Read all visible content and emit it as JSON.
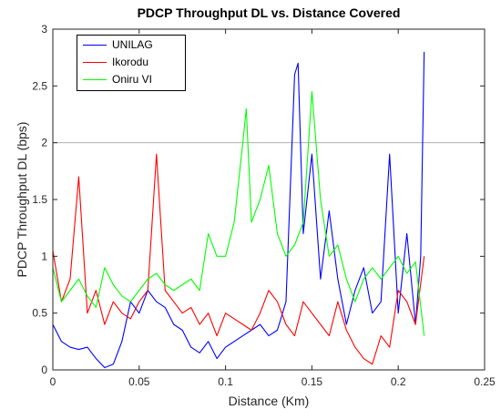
{
  "chart_data": {
    "type": "line",
    "title": "PDCP Throughput DL vs. Distance Covered",
    "xlabel": "Distance (Km)",
    "ylabel": "PDCP Throughput DL (bps)",
    "xlim": [
      0,
      0.25
    ],
    "ylim": [
      0,
      3
    ],
    "x_ticks": [
      "0",
      "0.05",
      "0.1",
      "0.15",
      "0.2",
      "0.25"
    ],
    "y_ticks": [
      "0",
      "0.5",
      "1",
      "1.5",
      "2",
      "2.5",
      "3"
    ],
    "reference_line_y": 2,
    "legend_position": "top-left",
    "series": [
      {
        "name": "UNILAG",
        "color": "#0000ff",
        "x": [
          0,
          0.005,
          0.01,
          0.015,
          0.02,
          0.025,
          0.03,
          0.035,
          0.04,
          0.045,
          0.05,
          0.055,
          0.06,
          0.065,
          0.07,
          0.075,
          0.08,
          0.085,
          0.09,
          0.095,
          0.1,
          0.105,
          0.11,
          0.115,
          0.12,
          0.125,
          0.13,
          0.135,
          0.14,
          0.142,
          0.145,
          0.15,
          0.155,
          0.16,
          0.165,
          0.17,
          0.175,
          0.18,
          0.185,
          0.19,
          0.195,
          0.2,
          0.205,
          0.21,
          0.213,
          0.215
        ],
        "y": [
          0.4,
          0.25,
          0.2,
          0.18,
          0.2,
          0.1,
          0.02,
          0.05,
          0.25,
          0.6,
          0.5,
          0.7,
          0.6,
          0.55,
          0.4,
          0.35,
          0.2,
          0.15,
          0.25,
          0.1,
          0.2,
          0.25,
          0.3,
          0.35,
          0.4,
          0.3,
          0.35,
          0.6,
          2.6,
          2.7,
          1.2,
          1.9,
          0.8,
          1.4,
          0.8,
          0.4,
          0.7,
          0.9,
          0.5,
          0.6,
          1.9,
          0.5,
          1.2,
          0.4,
          1.0,
          2.8
        ]
      },
      {
        "name": "Ikorodu",
        "color": "#ff0000",
        "x": [
          0,
          0.005,
          0.01,
          0.015,
          0.02,
          0.025,
          0.03,
          0.035,
          0.04,
          0.045,
          0.05,
          0.055,
          0.06,
          0.065,
          0.07,
          0.075,
          0.08,
          0.085,
          0.09,
          0.095,
          0.1,
          0.105,
          0.11,
          0.115,
          0.12,
          0.125,
          0.13,
          0.135,
          0.14,
          0.145,
          0.15,
          0.155,
          0.16,
          0.165,
          0.17,
          0.175,
          0.18,
          0.185,
          0.19,
          0.195,
          0.2,
          0.205,
          0.21,
          0.215
        ],
        "y": [
          1.05,
          0.6,
          0.8,
          1.7,
          0.5,
          0.7,
          0.4,
          0.6,
          0.5,
          0.45,
          0.6,
          0.7,
          1.9,
          0.7,
          0.6,
          0.5,
          0.55,
          0.4,
          0.5,
          0.3,
          0.5,
          0.45,
          0.4,
          0.35,
          0.5,
          0.7,
          0.6,
          0.4,
          0.3,
          0.6,
          0.5,
          0.4,
          0.3,
          0.6,
          0.35,
          0.2,
          0.1,
          0.05,
          0.3,
          0.2,
          0.7,
          0.6,
          0.4,
          1.0
        ]
      },
      {
        "name": "Oniru VI",
        "color": "#00ff00",
        "x": [
          0,
          0.005,
          0.01,
          0.015,
          0.02,
          0.025,
          0.03,
          0.035,
          0.04,
          0.045,
          0.05,
          0.055,
          0.06,
          0.065,
          0.07,
          0.075,
          0.08,
          0.085,
          0.09,
          0.095,
          0.1,
          0.105,
          0.11,
          0.112,
          0.115,
          0.12,
          0.125,
          0.13,
          0.135,
          0.14,
          0.145,
          0.15,
          0.155,
          0.16,
          0.165,
          0.17,
          0.175,
          0.18,
          0.185,
          0.19,
          0.195,
          0.2,
          0.205,
          0.21,
          0.215
        ],
        "y": [
          0.9,
          0.6,
          0.7,
          0.8,
          0.65,
          0.55,
          0.9,
          0.75,
          0.65,
          0.6,
          0.7,
          0.8,
          0.85,
          0.75,
          0.7,
          0.75,
          0.8,
          0.7,
          1.2,
          1.0,
          1.0,
          1.3,
          2.0,
          2.3,
          1.3,
          1.5,
          1.8,
          1.2,
          1.0,
          1.1,
          1.3,
          2.45,
          1.5,
          1.0,
          1.1,
          0.8,
          0.6,
          0.8,
          0.9,
          0.8,
          0.9,
          1.0,
          0.85,
          0.95,
          0.3
        ]
      }
    ]
  }
}
